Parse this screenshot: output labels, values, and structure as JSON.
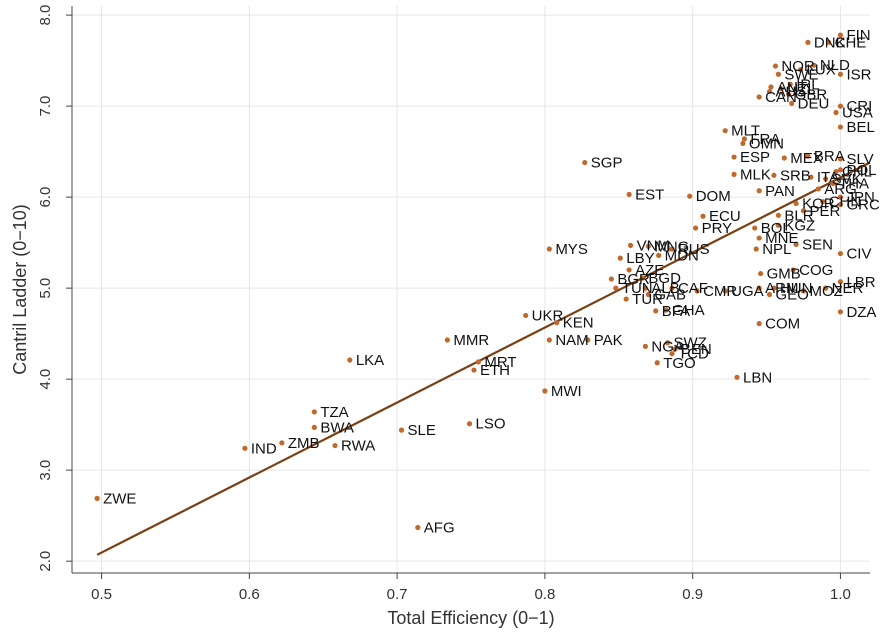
{
  "colors": {
    "point": "#c0692b",
    "fit_line": "#7a3f12",
    "axis": "#444444",
    "grid": "#e6e6e6",
    "text": "#111111"
  },
  "chart_data": {
    "type": "scatter",
    "xlabel": "Total Efficiency (0−1)",
    "ylabel": "Cantril Ladder (0−10)",
    "xlim": [
      0.48,
      1.02
    ],
    "ylim": [
      1.87,
      8.1
    ],
    "xticks": [
      0.5,
      0.6,
      0.7,
      0.8,
      0.9,
      1.0
    ],
    "xtick_labels": [
      "0.5",
      "0.6",
      "0.7",
      "0.8",
      "0.9",
      "1.0"
    ],
    "yticks": [
      2.0,
      3.0,
      4.0,
      5.0,
      6.0,
      7.0,
      8.0
    ],
    "ytick_labels": [
      "2.0",
      "3.0",
      "4.0",
      "5.0",
      "6.0",
      "7.0",
      "8.0"
    ],
    "grid": true,
    "fit_line": {
      "x": [
        0.497,
        1.02
      ],
      "y": [
        2.07,
        6.38
      ]
    },
    "points": [
      {
        "label": "ZWE",
        "x": 0.497,
        "y": 2.69
      },
      {
        "label": "AFG",
        "x": 0.714,
        "y": 2.37
      },
      {
        "label": "IND",
        "x": 0.597,
        "y": 3.24
      },
      {
        "label": "ZMB",
        "x": 0.622,
        "y": 3.3
      },
      {
        "label": "RWA",
        "x": 0.658,
        "y": 3.27
      },
      {
        "label": "BWA",
        "x": 0.644,
        "y": 3.47
      },
      {
        "label": "TZA",
        "x": 0.644,
        "y": 3.64
      },
      {
        "label": "SLE",
        "x": 0.703,
        "y": 3.44
      },
      {
        "label": "LSO",
        "x": 0.749,
        "y": 3.51
      },
      {
        "label": "LKA",
        "x": 0.668,
        "y": 4.21
      },
      {
        "label": "MMR",
        "x": 0.734,
        "y": 4.43
      },
      {
        "label": "MRT",
        "x": 0.755,
        "y": 4.19
      },
      {
        "label": "ETH",
        "x": 0.752,
        "y": 4.1
      },
      {
        "label": "MWI",
        "x": 0.8,
        "y": 3.87
      },
      {
        "label": "UKR",
        "x": 0.787,
        "y": 4.7
      },
      {
        "label": "KEN",
        "x": 0.808,
        "y": 4.62
      },
      {
        "label": "NAM",
        "x": 0.803,
        "y": 4.43
      },
      {
        "label": "PAK",
        "x": 0.829,
        "y": 4.43
      },
      {
        "label": "LBN",
        "x": 0.93,
        "y": 4.02
      },
      {
        "label": "COM",
        "x": 0.945,
        "y": 4.61
      },
      {
        "label": "DZA",
        "x": 1.0,
        "y": 4.74
      },
      {
        "label": "SGP",
        "x": 0.827,
        "y": 6.38
      },
      {
        "label": "EST",
        "x": 0.857,
        "y": 6.03
      },
      {
        "label": "MYS",
        "x": 0.803,
        "y": 5.43
      },
      {
        "label": "NGA",
        "x": 0.868,
        "y": 4.36
      },
      {
        "label": "SWZ",
        "x": 0.883,
        "y": 4.4
      },
      {
        "label": "BEN",
        "x": 0.888,
        "y": 4.33
      },
      {
        "label": "TCD",
        "x": 0.886,
        "y": 4.28
      },
      {
        "label": "TGO",
        "x": 0.876,
        "y": 4.18
      },
      {
        "label": "VNM",
        "x": 0.858,
        "y": 5.47
      },
      {
        "label": "MNG",
        "x": 0.87,
        "y": 5.46
      },
      {
        "label": "RUS",
        "x": 0.886,
        "y": 5.43
      },
      {
        "label": "LBY",
        "x": 0.851,
        "y": 5.33
      },
      {
        "label": "MDN",
        "x": 0.877,
        "y": 5.36
      },
      {
        "label": "BGR",
        "x": 0.845,
        "y": 5.1
      },
      {
        "label": "AZE",
        "x": 0.857,
        "y": 5.2
      },
      {
        "label": "BGD",
        "x": 0.866,
        "y": 5.11
      },
      {
        "label": "TUN",
        "x": 0.848,
        "y": 5.0
      },
      {
        "label": "ALB",
        "x": 0.868,
        "y": 5.0
      },
      {
        "label": "CAF",
        "x": 0.886,
        "y": 5.0
      },
      {
        "label": "TUR",
        "x": 0.855,
        "y": 4.88
      },
      {
        "label": "GAB",
        "x": 0.87,
        "y": 4.93
      },
      {
        "label": "CMR",
        "x": 0.903,
        "y": 4.97
      },
      {
        "label": "UGA",
        "x": 0.922,
        "y": 4.97
      },
      {
        "label": "GHA",
        "x": 0.882,
        "y": 4.76
      },
      {
        "label": "BFA",
        "x": 0.875,
        "y": 4.75
      },
      {
        "label": "GMB",
        "x": 0.946,
        "y": 5.16
      },
      {
        "label": "COG",
        "x": 0.968,
        "y": 5.2
      },
      {
        "label": "ARM",
        "x": 0.945,
        "y": 5.0
      },
      {
        "label": "HUN",
        "x": 0.955,
        "y": 5.0
      },
      {
        "label": "GEO",
        "x": 0.952,
        "y": 4.93
      },
      {
        "label": "MOZ",
        "x": 0.975,
        "y": 4.97
      },
      {
        "label": "LBR",
        "x": 1.0,
        "y": 5.07
      },
      {
        "label": "NER",
        "x": 0.99,
        "y": 5.0
      },
      {
        "label": "SEN",
        "x": 0.97,
        "y": 5.48
      },
      {
        "label": "CIV",
        "x": 1.0,
        "y": 5.38
      },
      {
        "label": "NPL",
        "x": 0.943,
        "y": 5.43
      },
      {
        "label": "MNE",
        "x": 0.945,
        "y": 5.55
      },
      {
        "label": "KGZ",
        "x": 0.958,
        "y": 5.69
      },
      {
        "label": "BOL",
        "x": 0.942,
        "y": 5.66
      },
      {
        "label": "PRY",
        "x": 0.902,
        "y": 5.66
      },
      {
        "label": "ECU",
        "x": 0.907,
        "y": 5.79
      },
      {
        "label": "BLR",
        "x": 0.958,
        "y": 5.8
      },
      {
        "label": "DOM",
        "x": 0.898,
        "y": 6.01
      },
      {
        "label": "PAN",
        "x": 0.945,
        "y": 6.07
      },
      {
        "label": "ESP",
        "x": 0.928,
        "y": 6.44
      },
      {
        "label": "MLT",
        "x": 0.922,
        "y": 6.73
      },
      {
        "label": "FRA",
        "x": 0.935,
        "y": 6.64
      },
      {
        "label": "OMN",
        "x": 0.934,
        "y": 6.59
      },
      {
        "label": "BEL",
        "x": 1.0,
        "y": 6.77
      },
      {
        "label": "MLK",
        "x": 0.928,
        "y": 6.25
      },
      {
        "label": "SRB",
        "x": 0.955,
        "y": 6.24
      },
      {
        "label": "MEX",
        "x": 0.962,
        "y": 6.43
      },
      {
        "label": "BRA",
        "x": 0.978,
        "y": 6.45
      },
      {
        "label": "SLV",
        "x": 1.0,
        "y": 6.42
      },
      {
        "label": "ITA",
        "x": 0.98,
        "y": 6.22
      },
      {
        "label": "SVK",
        "x": 0.99,
        "y": 6.2
      },
      {
        "label": "THA",
        "x": 0.995,
        "y": 6.15
      },
      {
        "label": "ARG",
        "x": 0.985,
        "y": 6.09
      },
      {
        "label": "JPN",
        "x": 1.0,
        "y": 6.0
      },
      {
        "label": "CHN",
        "x": 0.988,
        "y": 5.95
      },
      {
        "label": "GRC",
        "x": 1.0,
        "y": 5.92
      },
      {
        "label": "PER",
        "x": 0.975,
        "y": 5.85
      },
      {
        "label": "KOR",
        "x": 0.97,
        "y": 5.93
      },
      {
        "label": "POL",
        "x": 1.0,
        "y": 6.3
      },
      {
        "label": "CHL",
        "x": 0.997,
        "y": 6.28
      },
      {
        "label": "NOR",
        "x": 0.956,
        "y": 7.44
      },
      {
        "label": "SWE",
        "x": 0.958,
        "y": 7.35
      },
      {
        "label": "NLD",
        "x": 0.982,
        "y": 7.45
      },
      {
        "label": "LUX",
        "x": 0.973,
        "y": 7.4
      },
      {
        "label": "ISR",
        "x": 1.0,
        "y": 7.35
      },
      {
        "label": "AUT",
        "x": 0.953,
        "y": 7.21
      },
      {
        "label": "NZL",
        "x": 0.96,
        "y": 7.19
      },
      {
        "label": "IRL",
        "x": 0.966,
        "y": 7.24
      },
      {
        "label": "AUS",
        "x": 0.952,
        "y": 7.16
      },
      {
        "label": "CAN",
        "x": 0.945,
        "y": 7.1
      },
      {
        "label": "GBR",
        "x": 0.965,
        "y": 7.13
      },
      {
        "label": "DEU",
        "x": 0.967,
        "y": 7.03
      },
      {
        "label": "CRI",
        "x": 1.0,
        "y": 7.0
      },
      {
        "label": "USA",
        "x": 0.997,
        "y": 6.93
      },
      {
        "label": "DNK",
        "x": 0.978,
        "y": 7.7
      },
      {
        "label": "CHE",
        "x": 0.992,
        "y": 7.7
      },
      {
        "label": "FIN",
        "x": 1.0,
        "y": 7.78
      }
    ]
  }
}
